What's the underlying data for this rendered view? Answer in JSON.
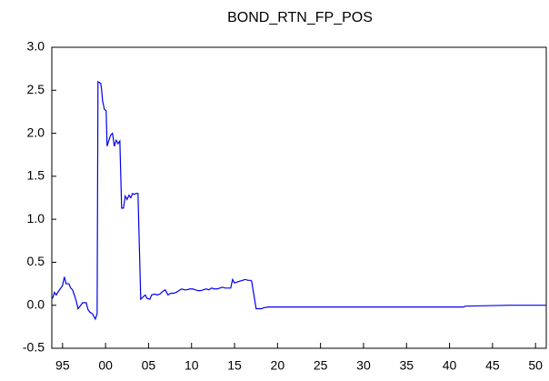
{
  "chart_data": {
    "type": "line",
    "title": "BOND_RTN_FP_POS",
    "x": [
      1993.84,
      1994.05,
      1994.26,
      1994.58,
      1994.79,
      1995.0,
      1995.21,
      1995.42,
      1995.74,
      1995.95,
      1996.16,
      1996.37,
      1996.59,
      1996.8,
      1997.11,
      1997.33,
      1997.54,
      1997.75,
      1997.96,
      1998.17,
      1998.49,
      1998.59,
      1998.81,
      1999.02,
      1999.12,
      1999.44,
      1999.55,
      1999.65,
      1999.86,
      2000.07,
      2000.18,
      2000.39,
      2000.6,
      2000.81,
      2001.02,
      2001.24,
      2001.45,
      2001.66,
      2001.87,
      2002.08,
      2002.29,
      2002.5,
      2002.72,
      2002.93,
      2003.14,
      2003.35,
      2003.56,
      2003.77,
      2004.09,
      2004.3,
      2004.62,
      2004.83,
      2005.15,
      2005.36,
      2005.68,
      2005.99,
      2006.31,
      2006.63,
      2006.94,
      2007.26,
      2007.58,
      2007.9,
      2008.21,
      2008.53,
      2008.85,
      2009.16,
      2009.48,
      2009.8,
      2010.12,
      2010.43,
      2010.75,
      2011.07,
      2011.38,
      2011.7,
      2012.02,
      2012.33,
      2012.65,
      2012.97,
      2013.29,
      2013.6,
      2013.92,
      2014.24,
      2014.55,
      2014.77,
      2014.98,
      2015.29,
      2015.61,
      2015.93,
      2016.25,
      2016.56,
      2016.88,
      2016.99,
      2017.51,
      2017.83,
      2018.15,
      2018.36,
      2018.89,
      2021.53,
      2024.7,
      2027.87,
      2032.1,
      2038.44,
      2041.61,
      2041.82,
      2046.9,
      2051.23
    ],
    "series": [
      {
        "color": "#0000ee",
        "values": [
          0.08,
          0.15,
          0.12,
          0.17,
          0.2,
          0.23,
          0.33,
          0.25,
          0.25,
          0.2,
          0.18,
          0.12,
          0.05,
          -0.04,
          0.0,
          0.03,
          0.03,
          0.03,
          -0.05,
          -0.08,
          -0.1,
          -0.12,
          -0.16,
          -0.1,
          2.6,
          2.58,
          2.5,
          2.38,
          2.28,
          2.26,
          1.85,
          1.92,
          1.98,
          2.0,
          1.85,
          1.92,
          1.88,
          1.91,
          1.13,
          1.13,
          1.27,
          1.23,
          1.28,
          1.25,
          1.3,
          1.29,
          1.3,
          1.3,
          0.07,
          0.09,
          0.12,
          0.08,
          0.07,
          0.12,
          0.13,
          0.12,
          0.13,
          0.16,
          0.18,
          0.12,
          0.14,
          0.14,
          0.15,
          0.17,
          0.19,
          0.18,
          0.18,
          0.19,
          0.19,
          0.18,
          0.17,
          0.17,
          0.18,
          0.19,
          0.18,
          0.2,
          0.19,
          0.19,
          0.2,
          0.21,
          0.2,
          0.2,
          0.2,
          0.3,
          0.26,
          0.27,
          0.28,
          0.29,
          0.3,
          0.29,
          0.29,
          0.28,
          -0.04,
          -0.04,
          -0.04,
          -0.03,
          -0.02,
          -0.02,
          -0.02,
          -0.02,
          -0.02,
          -0.02,
          -0.02,
          -0.01,
          0.0,
          0.0
        ]
      }
    ],
    "xlim": [
      1993.75,
      2051.25
    ],
    "xticks": [
      {
        "value": 1995,
        "label": "95"
      },
      {
        "value": 2000,
        "label": "00"
      },
      {
        "value": 2005,
        "label": "05"
      },
      {
        "value": 2010,
        "label": "10"
      },
      {
        "value": 2015,
        "label": "15"
      },
      {
        "value": 2020,
        "label": "20"
      },
      {
        "value": 2025,
        "label": "25"
      },
      {
        "value": 2030,
        "label": "30"
      },
      {
        "value": 2035,
        "label": "35"
      },
      {
        "value": 2040,
        "label": "40"
      },
      {
        "value": 2045,
        "label": "45"
      },
      {
        "value": 2050,
        "label": "50"
      }
    ],
    "ylim": [
      -0.5,
      3.0
    ],
    "yticks": [
      -0.5,
      {
        "value": 0,
        "label": "0.0"
      },
      0.5,
      {
        "value": 1,
        "label": "1.0"
      },
      1.5,
      {
        "value": 2,
        "label": "2.0"
      },
      2.5,
      {
        "value": 3,
        "label": "3.0"
      }
    ]
  }
}
